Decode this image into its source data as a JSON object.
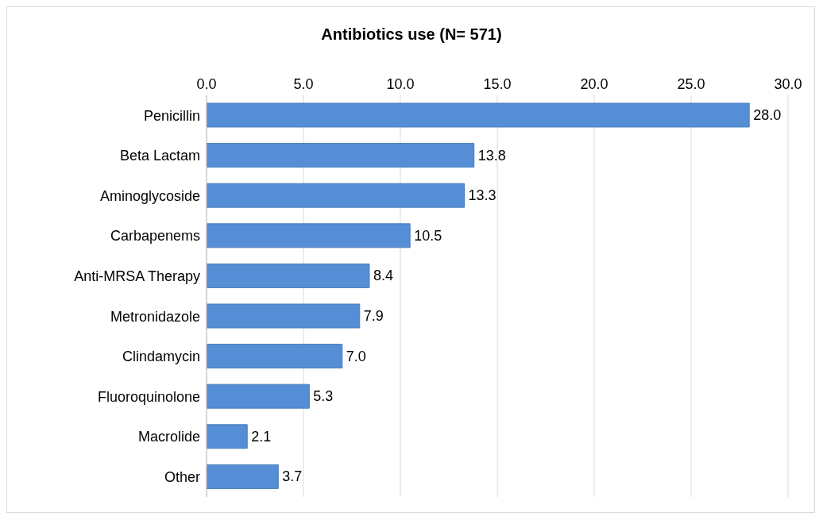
{
  "chart_data": {
    "type": "bar",
    "orientation": "horizontal",
    "title": "Antibiotics use (N= 571)",
    "categories": [
      "Penicillin",
      "Beta Lactam",
      "Aminoglycoside",
      "Carbapenems",
      "Anti-MRSA Therapy",
      "Metronidazole",
      "Clindamycin",
      "Fluoroquinolone",
      "Macrolide",
      "Other"
    ],
    "values": [
      28.0,
      13.8,
      13.3,
      10.5,
      8.4,
      7.9,
      7.0,
      5.3,
      2.1,
      3.7
    ],
    "value_labels": [
      "28.0",
      "13.8",
      "13.3",
      "10.5",
      "8.4",
      "7.9",
      "7.0",
      "5.3",
      "2.1",
      "3.7"
    ],
    "color": "#558ed5",
    "xlim": [
      0,
      30
    ],
    "xticks": [
      {
        "value": 0,
        "label": "0.0"
      },
      {
        "value": 5,
        "label": "5.0"
      },
      {
        "value": 10,
        "label": "10.0"
      },
      {
        "value": 15,
        "label": "15.0"
      },
      {
        "value": 20,
        "label": "20.0"
      },
      {
        "value": 25,
        "label": "25.0"
      },
      {
        "value": 30,
        "label": "30.0"
      }
    ],
    "grid": "x"
  }
}
